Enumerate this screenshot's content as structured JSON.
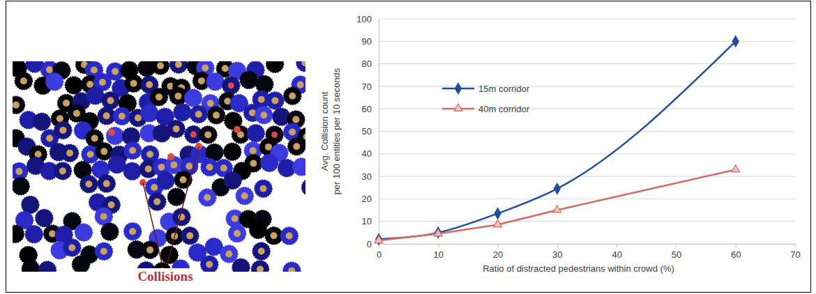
{
  "chart_data": {
    "type": "line",
    "x_label": "Ratio of distracted pedestrians within crowd (%)",
    "y_label": [
      "Avg. Collision count",
      "per 100 entities per 10 seconds"
    ],
    "annotations": [
      "Collisions"
    ],
    "x": [
      0,
      10,
      20,
      30,
      60
    ],
    "series": [
      {
        "name": "15m corridor",
        "color": "#1f4e9c",
        "marker": "diamond",
        "line_style": "smooth",
        "values": [
          2,
          5,
          13.5,
          24.5,
          90
        ]
      },
      {
        "name": "40m corridor",
        "color": "#d46a64",
        "marker": "triangle",
        "line_style": "solid",
        "values": [
          1.5,
          4.5,
          8.5,
          15,
          33
        ]
      }
    ],
    "xlim": [
      0,
      70
    ],
    "xticks": [
      0,
      10,
      20,
      30,
      40,
      50,
      60,
      70
    ],
    "ylim": [
      0,
      100
    ],
    "yticks": [
      0,
      10,
      20,
      30,
      40,
      50,
      60,
      70,
      80,
      90,
      100
    ],
    "grid": true,
    "legend": "upper left"
  }
}
